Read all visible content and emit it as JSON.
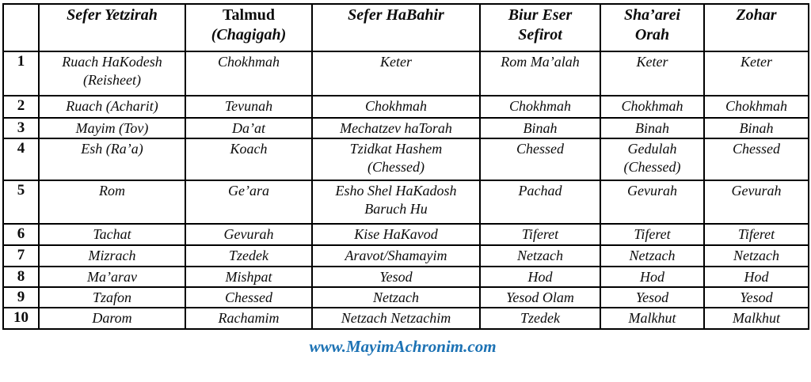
{
  "page": {
    "colors": {
      "background": "#ffffff",
      "text": "#0c0c0c",
      "border": "#000000",
      "link": "#1c72b4"
    }
  },
  "table": {
    "corner_label": "",
    "headers": [
      {
        "lines": [
          {
            "text": "Sefer Yetzirah",
            "italic": true
          }
        ]
      },
      {
        "lines": [
          {
            "text": "Talmud",
            "italic": false
          },
          {
            "text": "(Chagigah)",
            "italic": true
          }
        ]
      },
      {
        "lines": [
          {
            "text": "Sefer HaBahir",
            "italic": true
          }
        ]
      },
      {
        "lines": [
          {
            "text": "Biur Eser",
            "italic": true
          },
          {
            "text": "Sefirot",
            "italic": true
          }
        ]
      },
      {
        "lines": [
          {
            "text": "Sha’arei",
            "italic": true
          },
          {
            "text": "Orah",
            "italic": true
          }
        ]
      },
      {
        "lines": [
          {
            "text": "Zohar",
            "italic": true
          }
        ]
      }
    ],
    "rows": [
      {
        "num": "1",
        "cells": [
          [
            "Ruach HaKodesh",
            "(Reisheet)"
          ],
          [
            "Chokhmah"
          ],
          [
            "Keter"
          ],
          [
            "Rom Ma’alah"
          ],
          [
            "Keter"
          ],
          [
            "Keter"
          ]
        ]
      },
      {
        "num": "2",
        "cells": [
          [
            "Ruach (Acharit)"
          ],
          [
            "Tevunah"
          ],
          [
            "Chokhmah"
          ],
          [
            "Chokhmah"
          ],
          [
            "Chokhmah"
          ],
          [
            "Chokhmah"
          ]
        ]
      },
      {
        "num": "3",
        "cells": [
          [
            "Mayim (Tov)"
          ],
          [
            "Da’at"
          ],
          [
            "Mechatzev haTorah"
          ],
          [
            "Binah"
          ],
          [
            "Binah"
          ],
          [
            "Binah"
          ]
        ]
      },
      {
        "num": "4",
        "cells": [
          [
            "Esh (Ra’a)"
          ],
          [
            "Koach"
          ],
          [
            "Tzidkat Hashem",
            "(Chessed)"
          ],
          [
            "Chessed"
          ],
          [
            "Gedulah",
            "(Chessed)"
          ],
          [
            "Chessed"
          ]
        ]
      },
      {
        "num": "5",
        "cells": [
          [
            "Rom"
          ],
          [
            "Ge’ara"
          ],
          [
            "Esho Shel HaKadosh",
            "Baruch Hu"
          ],
          [
            "Pachad"
          ],
          [
            "Gevurah"
          ],
          [
            "Gevurah"
          ]
        ]
      },
      {
        "num": "6",
        "cells": [
          [
            "Tachat"
          ],
          [
            "Gevurah"
          ],
          [
            "Kise HaKavod"
          ],
          [
            "Tiferet"
          ],
          [
            "Tiferet"
          ],
          [
            "Tiferet"
          ]
        ]
      },
      {
        "num": "7",
        "cells": [
          [
            "Mizrach"
          ],
          [
            "Tzedek"
          ],
          [
            "Aravot/Shamayim"
          ],
          [
            "Netzach"
          ],
          [
            "Netzach"
          ],
          [
            "Netzach"
          ]
        ]
      },
      {
        "num": "8",
        "cells": [
          [
            "Ma’arav"
          ],
          [
            "Mishpat"
          ],
          [
            "Yesod"
          ],
          [
            "Hod"
          ],
          [
            "Hod"
          ],
          [
            "Hod"
          ]
        ]
      },
      {
        "num": "9",
        "cells": [
          [
            "Tzafon"
          ],
          [
            "Chessed"
          ],
          [
            "Netzach"
          ],
          [
            "Yesod Olam"
          ],
          [
            "Yesod"
          ],
          [
            "Yesod"
          ]
        ]
      },
      {
        "num": "10",
        "cells": [
          [
            "Darom"
          ],
          [
            "Rachamim"
          ],
          [
            "Netzach Netzachim"
          ],
          [
            "Tzedek"
          ],
          [
            "Malkhut"
          ],
          [
            "Malkhut"
          ]
        ]
      }
    ]
  },
  "footer": {
    "link_text": "www.MayimAchronim.com"
  }
}
